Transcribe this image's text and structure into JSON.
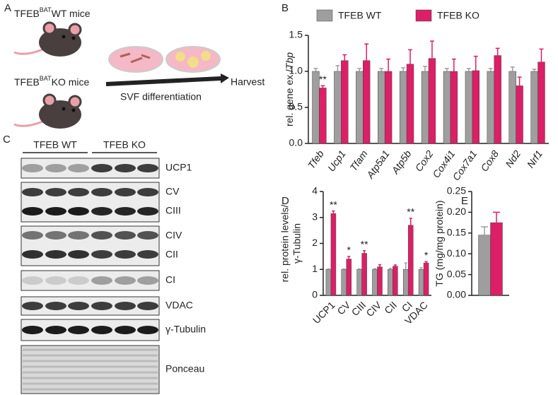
{
  "panels": [
    "A",
    "B",
    "C",
    "D",
    "E"
  ],
  "schematic": {
    "wt_label": [
      "TFEB",
      "BAT",
      "WT mice"
    ],
    "ko_label": [
      "TFEB",
      "BAT",
      "KO mice"
    ],
    "step": "SVF differentiation",
    "end": "Harvest"
  },
  "blot": {
    "groups": [
      "TFEB WT",
      "TFEB KO"
    ],
    "bands": [
      "UCP1",
      "CV",
      "CIII",
      "CIV",
      "CII",
      "CI",
      "VDAC",
      "γ-Tubulin",
      "Ponceau"
    ]
  },
  "chart_data": [
    {
      "type": "bar",
      "y_label": [
        "rel. gene ex./"
      ],
      "y_label_italic": "Tbp",
      "categories_italic": true,
      "legend": "top",
      "categories": [
        "Tfeb",
        "Ucp1",
        "Tfam",
        "Atp5a1",
        "Atp5b",
        "Cox2",
        "Cox4i1",
        "Cox7a1",
        "Cox8",
        "Nd2",
        "Nrf1"
      ],
      "series": [
        {
          "name": "TFEB WT",
          "color": "#9e9e9e",
          "values": [
            1,
            1,
            1,
            1,
            1,
            1,
            1,
            1,
            1,
            1,
            1
          ],
          "errors": [
            0.04,
            0.08,
            0.04,
            0.04,
            0.05,
            0.07,
            0.04,
            0.04,
            0.04,
            0.06,
            0.03
          ]
        },
        {
          "name": "TFEB KO",
          "color": "#dc1f66",
          "values": [
            0.77,
            1.15,
            1.15,
            1.0,
            1.1,
            1.18,
            1.0,
            1.01,
            1.22,
            0.8,
            1.13
          ],
          "errors": [
            0.03,
            0.08,
            0.23,
            0.17,
            0.2,
            0.24,
            0.17,
            0.2,
            0.1,
            0.12,
            0.18
          ],
          "significance": [
            "**",
            null,
            null,
            null,
            null,
            null,
            null,
            null,
            null,
            null,
            null
          ]
        }
      ],
      "ylim": [
        0,
        1.5
      ],
      "yticks": [
        {
          "value": 0,
          "label": "0.0"
        },
        0.5,
        {
          "value": 1,
          "label": "1.0"
        },
        1.5
      ]
    },
    {
      "type": "bar",
      "y_label": [
        "rel. protein levels/",
        "γ-Tubulin"
      ],
      "categories": [
        "UCP1",
        "CV",
        "CIII",
        "CIV",
        "CII",
        "CI",
        "VDAC"
      ],
      "series": [
        {
          "color": "#9e9e9e",
          "values": [
            1,
            1,
            1,
            1,
            1,
            1,
            1
          ],
          "errors": [
            0.02,
            0.02,
            0.02,
            0.03,
            0.04,
            0.25,
            0.06
          ]
        },
        {
          "color": "#dc1f66",
          "values": [
            3.15,
            1.4,
            1.62,
            1.1,
            1.12,
            2.7,
            1.25
          ],
          "errors": [
            0.1,
            0.1,
            0.1,
            0.08,
            0.05,
            0.27,
            0.05
          ],
          "significance": [
            "**",
            "*",
            "**",
            null,
            null,
            "**",
            "*"
          ]
        }
      ],
      "ylim": [
        0,
        4
      ],
      "yticks": [
        0,
        1,
        2,
        3,
        4
      ]
    },
    {
      "type": "bar",
      "y_label": [
        "TG (mg/mg protein)"
      ],
      "categories": [
        null
      ],
      "series": [
        {
          "color": "#9e9e9e",
          "values": [
            0.145
          ],
          "errors": [
            0.02
          ]
        },
        {
          "color": "#dc1f66",
          "values": [
            0.175
          ],
          "errors": [
            0.025
          ]
        }
      ],
      "ylim": [
        0,
        0.25
      ],
      "yticks": [
        {
          "value": 0,
          "label": "0.00"
        },
        {
          "value": 0.05,
          "label": "0.05"
        },
        {
          "value": 0.1,
          "label": "0.10"
        },
        {
          "value": 0.15,
          "label": "0.15"
        },
        {
          "value": 0.2,
          "label": "0.20"
        },
        {
          "value": 0.25,
          "label": "0.25"
        }
      ]
    }
  ]
}
